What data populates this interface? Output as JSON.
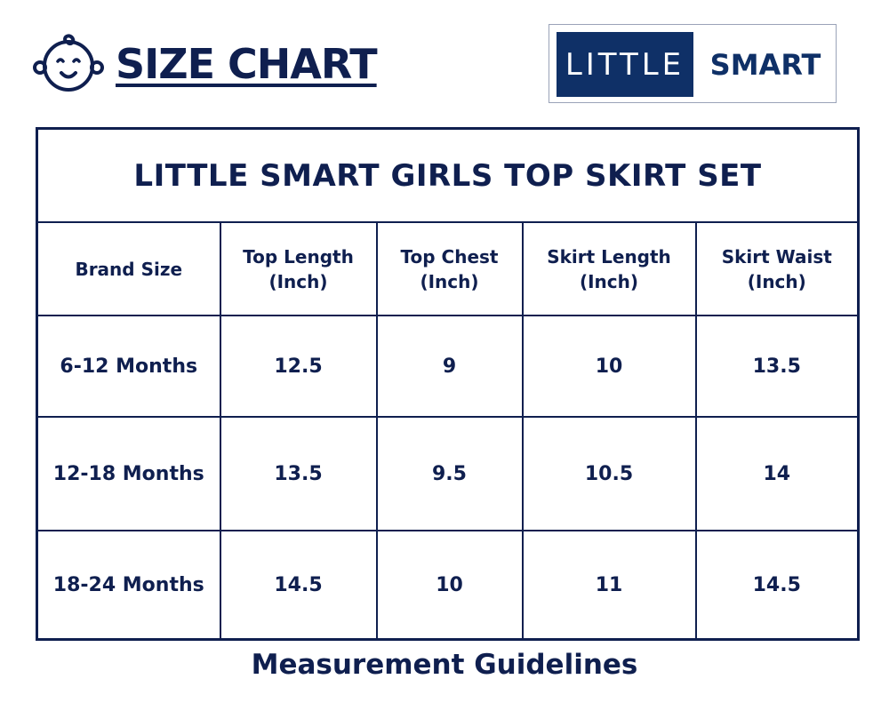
{
  "header": {
    "title": "SIZE CHART",
    "icon": "baby-face-icon"
  },
  "logo": {
    "left_text": "LITTLE",
    "right_text": "SMART",
    "accent_color": "#0f3067"
  },
  "table": {
    "title": "LITTLE SMART GIRLS TOP SKIRT SET",
    "columns": [
      {
        "line1": "Brand Size",
        "line2": ""
      },
      {
        "line1": "Top Length",
        "line2": "(Inch)"
      },
      {
        "line1": "Top Chest",
        "line2": "(Inch)"
      },
      {
        "line1": "Skirt Length",
        "line2": "(Inch)"
      },
      {
        "line1": "Skirt Waist",
        "line2": "(Inch)"
      }
    ],
    "rows": [
      [
        "6-12 Months",
        "12.5",
        "9",
        "10",
        "13.5"
      ],
      [
        "12-18 Months",
        "13.5",
        "9.5",
        "10.5",
        "14"
      ],
      [
        "18-24 Months",
        "14.5",
        "10",
        "11",
        "14.5"
      ]
    ]
  },
  "footer": {
    "title": "Measurement Guidelines"
  },
  "colors": {
    "text": "#0f1f4f",
    "border": "#0f1f4f",
    "background": "#ffffff"
  }
}
